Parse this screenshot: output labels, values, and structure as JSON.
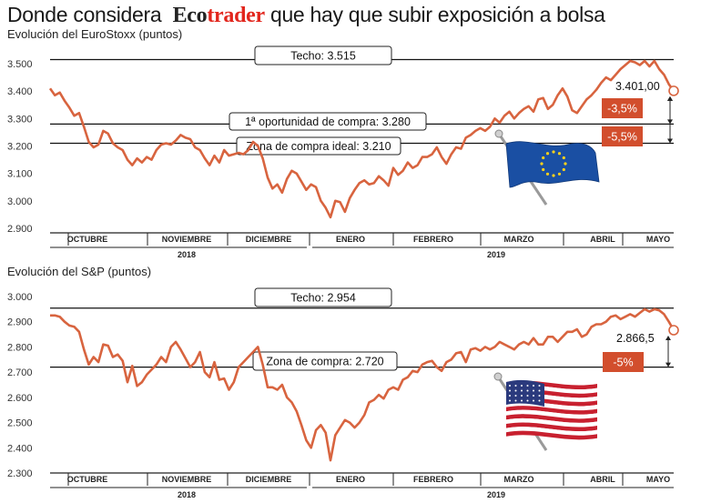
{
  "header": {
    "title_before": "Donde considera",
    "brand_part1": "Eco",
    "brand_part2": "trader",
    "title_after": "que hay que subir exposición a bolsa"
  },
  "colors": {
    "series": "#d8643f",
    "badge": "#d24e2d",
    "line": "#111111",
    "grid": "#bbbbbb"
  },
  "chart_data": [
    {
      "type": "line",
      "title": "Evolución del EuroStoxx (puntos)",
      "ylim": [
        2900,
        3500
      ],
      "y_ticks": [
        "3.500",
        "3.400",
        "3.300",
        "3.200",
        "3.100",
        "3.000",
        "2.900"
      ],
      "y_tick_values": [
        3500,
        3400,
        3300,
        3200,
        3100,
        3000,
        2900
      ],
      "months": [
        "OCTUBRE",
        "NOVIEMBRE",
        "DICIEMBRE",
        "ENERO",
        "FEBRERO",
        "MARZO",
        "ABRIL",
        "MAYO"
      ],
      "years": [
        "2018",
        "2019"
      ],
      "reference_lines": [
        {
          "label": "Techo: 3.515",
          "value": 3515
        },
        {
          "label": "1ª oportunidad de compra: 3.280",
          "value": 3280
        },
        {
          "label": "Zona de compra ideal: 3.210",
          "value": 3210
        }
      ],
      "last_value_label": "3.401,00",
      "last_value": 3401,
      "badges": [
        "-3,5%",
        "-5,5%"
      ],
      "flag": "eu-flag-icon",
      "series": [
        {
          "values": [
            3410,
            3385,
            3395,
            3365,
            3340,
            3310,
            3320,
            3270,
            3215,
            3195,
            3205,
            3255,
            3245,
            3210,
            3195,
            3185,
            3150,
            3130,
            3155,
            3140,
            3160,
            3150,
            3185,
            3205,
            3210,
            3205,
            3220,
            3240,
            3230,
            3225,
            3195,
            3185,
            3155,
            3130,
            3165,
            3140,
            3185,
            3165,
            3170,
            3175,
            3170,
            3185,
            3215,
            3200,
            3155,
            3085,
            3045,
            3060,
            3030,
            3080,
            3110,
            3100,
            3070,
            3040,
            3060,
            3050,
            3000,
            2975,
            2940,
            3000,
            2995,
            2960,
            3010,
            3040,
            3065,
            3075,
            3060,
            3065,
            3090,
            3075,
            3055,
            3120,
            3095,
            3110,
            3140,
            3120,
            3130,
            3160,
            3160,
            3170,
            3195,
            3160,
            3135,
            3170,
            3195,
            3190,
            3230,
            3240,
            3255,
            3265,
            3255,
            3270,
            3300,
            3285,
            3310,
            3325,
            3300,
            3320,
            3335,
            3345,
            3325,
            3370,
            3375,
            3335,
            3350,
            3385,
            3410,
            3380,
            3330,
            3320,
            3345,
            3370,
            3385,
            3405,
            3430,
            3450,
            3440,
            3460,
            3480,
            3495,
            3510,
            3505,
            3495,
            3510,
            3490,
            3510,
            3480,
            3460,
            3425,
            3401
          ]
        }
      ]
    },
    {
      "type": "line",
      "title": "Evolución del S&P (puntos)",
      "ylim": [
        2300,
        3000
      ],
      "y_ticks": [
        "3.000",
        "2.900",
        "2.800",
        "2.700",
        "2.600",
        "2.500",
        "2.400",
        "2.300"
      ],
      "y_tick_values": [
        3000,
        2900,
        2800,
        2700,
        2600,
        2500,
        2400,
        2300
      ],
      "months": [
        "OCTUBRE",
        "NOVIEMBRE",
        "DICIEMBRE",
        "ENERO",
        "FEBRERO",
        "MARZO",
        "ABRIL",
        "MAYO"
      ],
      "years": [
        "2018",
        "2019"
      ],
      "reference_lines": [
        {
          "label": "Techo: 2.954",
          "value": 2954
        },
        {
          "label": "Zona de compra: 2.720",
          "value": 2720
        }
      ],
      "last_value_label": "2.866,5",
      "last_value": 2866.5,
      "badges": [
        "-5%"
      ],
      "flag": "us-flag-icon",
      "series": [
        {
          "values": [
            2925,
            2925,
            2920,
            2900,
            2885,
            2880,
            2860,
            2790,
            2730,
            2760,
            2740,
            2810,
            2805,
            2760,
            2770,
            2745,
            2660,
            2725,
            2645,
            2660,
            2690,
            2710,
            2730,
            2760,
            2740,
            2800,
            2820,
            2790,
            2755,
            2720,
            2740,
            2780,
            2700,
            2680,
            2740,
            2670,
            2675,
            2630,
            2660,
            2720,
            2740,
            2760,
            2780,
            2800,
            2730,
            2640,
            2640,
            2630,
            2650,
            2600,
            2580,
            2545,
            2490,
            2430,
            2400,
            2470,
            2490,
            2460,
            2350,
            2450,
            2480,
            2510,
            2500,
            2480,
            2500,
            2530,
            2580,
            2590,
            2610,
            2595,
            2630,
            2640,
            2630,
            2670,
            2680,
            2705,
            2700,
            2730,
            2740,
            2745,
            2720,
            2705,
            2740,
            2750,
            2775,
            2780,
            2740,
            2790,
            2795,
            2785,
            2800,
            2790,
            2800,
            2820,
            2810,
            2800,
            2790,
            2810,
            2820,
            2810,
            2835,
            2810,
            2810,
            2840,
            2840,
            2820,
            2840,
            2860,
            2860,
            2870,
            2840,
            2850,
            2880,
            2890,
            2890,
            2900,
            2920,
            2925,
            2910,
            2920,
            2930,
            2920,
            2935,
            2950,
            2940,
            2950,
            2945,
            2930,
            2900,
            2866.5
          ]
        }
      ]
    }
  ]
}
